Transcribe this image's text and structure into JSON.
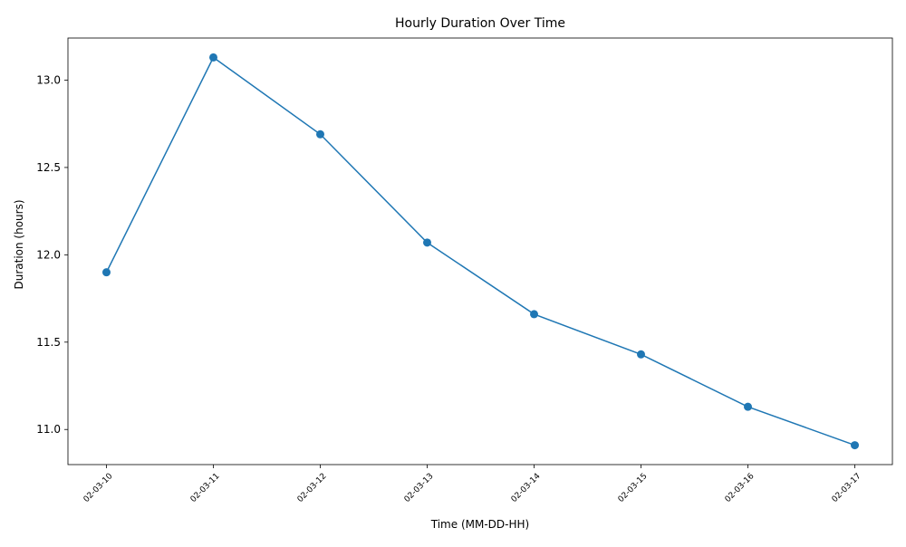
{
  "chart_data": {
    "type": "line",
    "title": "Hourly Duration Over Time",
    "xlabel": "Time (MM-DD-HH)",
    "ylabel": "Duration (hours)",
    "categories": [
      "02-03-10",
      "02-03-11",
      "02-03-12",
      "02-03-13",
      "02-03-14",
      "02-03-15",
      "02-03-16",
      "02-03-17"
    ],
    "series": [
      {
        "name": "Duration",
        "values": [
          11.9,
          13.13,
          12.69,
          12.07,
          11.66,
          11.43,
          11.13,
          10.91
        ],
        "color": "#1f77b4",
        "marker": "circle"
      }
    ],
    "ylim": [
      10.799,
      13.241
    ],
    "yticks": [
      11.0,
      11.5,
      12.0,
      12.5,
      13.0
    ],
    "ytick_labels": [
      "11.0",
      "11.5",
      "12.0",
      "12.5",
      "13.0"
    ],
    "grid": false,
    "legend": "none"
  }
}
